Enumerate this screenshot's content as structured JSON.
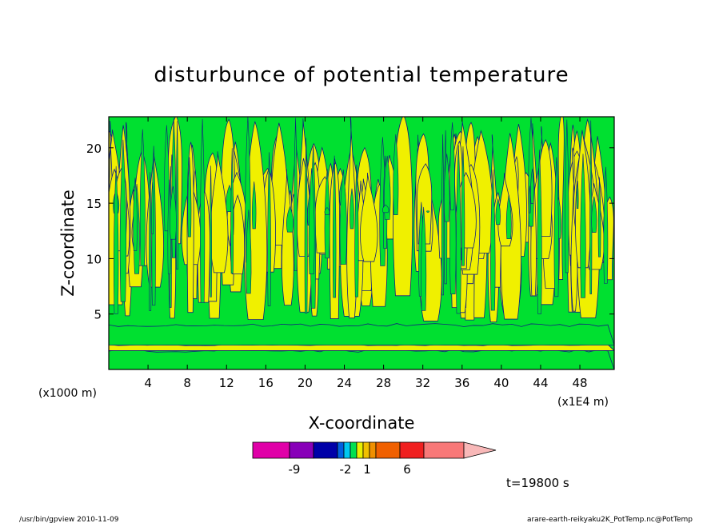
{
  "chart_data": {
    "type": "heatmap",
    "title": "disturbunce of potential temperature",
    "xlabel": "X-coordinate",
    "ylabel": "Z-coordinate",
    "x_unit": "(x1E4 m)",
    "y_unit": "(x1000 m)",
    "xlim": [
      0,
      51.5
    ],
    "ylim": [
      0,
      22.8
    ],
    "x_ticks": [
      4,
      8,
      12,
      16,
      20,
      24,
      28,
      32,
      36,
      40,
      44,
      48
    ],
    "y_ticks": [
      5,
      10,
      15,
      20
    ],
    "time_label": "t=19800 s",
    "grid": false,
    "colorbar": {
      "colors": [
        "#e000a8",
        "#8800b8",
        "#0000a8",
        "#0060e0",
        "#00c8f0",
        "#00e050",
        "#e8f000",
        "#f0c000",
        "#f09000",
        "#f06000",
        "#f02020",
        "#f87878",
        "#f8b8b8"
      ],
      "tick_labels": [
        "-9",
        "-2",
        "1",
        "6"
      ],
      "extend": "max"
    },
    "field_summary": [
      {
        "z_range": [
          0,
          1.7
        ],
        "value_class": "green"
      },
      {
        "z_range": [
          1.7,
          2.2
        ],
        "value_class": "yellow"
      },
      {
        "z_range": [
          2.2,
          4.0
        ],
        "value_class": "green"
      },
      {
        "z_range": [
          4.0,
          22.8
        ],
        "value_class": "yellow-green plumes"
      }
    ]
  },
  "footer": {
    "left": "/usr/bin/gpview   2010-11-09",
    "right": "arare-earth-reikyaku2K_PotTemp.nc@PotTemp"
  },
  "colors": {
    "green": "#00e030",
    "yellow": "#f0f000",
    "contour": "#102080"
  }
}
